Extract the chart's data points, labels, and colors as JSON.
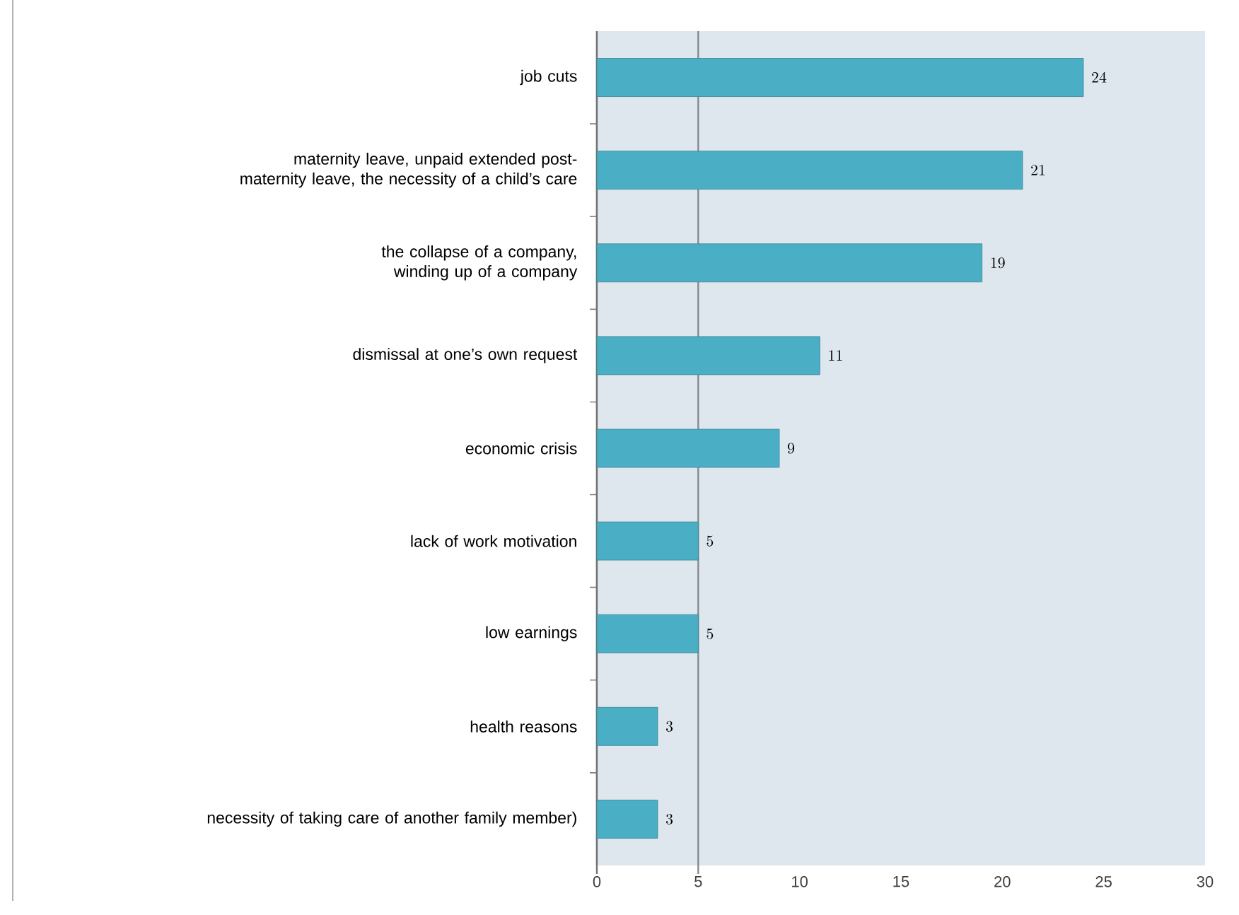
{
  "chart_data": {
    "type": "bar",
    "orientation": "horizontal",
    "categories": [
      "job cuts",
      "maternity leave, unpaid extended post-maternity leave, the necessity of a child’s care",
      "the collapse of a company, winding up of a company",
      "dismissal at one’s own request",
      "economic crisis",
      "lack of work motivation",
      "low earnings",
      "health reasons",
      "necessity of taking care of another family member)"
    ],
    "values": [
      24,
      21,
      19,
      11,
      9,
      5,
      5,
      3,
      3
    ],
    "color": "#4aafc5",
    "xlim": [
      0,
      30
    ],
    "xticks": [
      0,
      5,
      10,
      15,
      20,
      25,
      30
    ],
    "ref_lines": [
      {
        "axis": "x",
        "value": 5,
        "color": "#8a8a8a"
      }
    ],
    "data_labels": true
  }
}
